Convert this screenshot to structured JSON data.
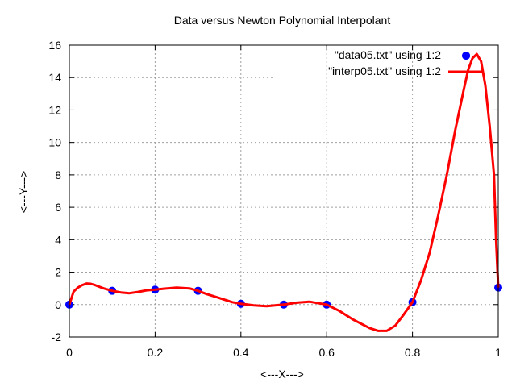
{
  "chart_data": {
    "type": "scatter",
    "title": "Data versus Newton Polynomial Interpolant",
    "xlabel": "<---X--->",
    "ylabel": "<---Y--->",
    "xlim": [
      0,
      1
    ],
    "ylim": [
      -2,
      16
    ],
    "xticks": [
      0,
      0.2,
      0.4,
      0.6,
      0.8,
      1
    ],
    "xtick_labels": [
      "0",
      "0.2",
      "0.4",
      "0.6",
      "0.8",
      "1"
    ],
    "yticks": [
      -2,
      0,
      2,
      4,
      6,
      8,
      10,
      12,
      14,
      16
    ],
    "ytick_labels": [
      "-2",
      "0",
      "2",
      "4",
      "6",
      "8",
      "10",
      "12",
      "14",
      "16"
    ],
    "grid": true,
    "legend_position": "top-right",
    "series": [
      {
        "name": "\"data05.txt\" using 1:2",
        "kind": "points",
        "color": "#0000ff",
        "x": [
          0,
          0.1,
          0.2,
          0.3,
          0.4,
          0.5,
          0.6,
          0.8,
          0.925,
          1
        ],
        "y": [
          0,
          0.85,
          0.92,
          0.85,
          0.05,
          0.0,
          0.0,
          0.15,
          15.35,
          1.05
        ]
      },
      {
        "name": "\"interp05.txt\" using 1:2",
        "kind": "line",
        "color": "#ff0000",
        "x": [
          0,
          0.01,
          0.02,
          0.03,
          0.04,
          0.05,
          0.06,
          0.08,
          0.1,
          0.12,
          0.14,
          0.16,
          0.18,
          0.2,
          0.22,
          0.25,
          0.28,
          0.3,
          0.32,
          0.35,
          0.38,
          0.4,
          0.43,
          0.46,
          0.5,
          0.53,
          0.56,
          0.6,
          0.63,
          0.66,
          0.7,
          0.72,
          0.74,
          0.76,
          0.78,
          0.8,
          0.82,
          0.84,
          0.86,
          0.88,
          0.9,
          0.92,
          0.93,
          0.94,
          0.95,
          0.96,
          0.97,
          0.98,
          0.99,
          0.995,
          1.0
        ],
        "y": [
          0,
          0.8,
          1.05,
          1.2,
          1.3,
          1.28,
          1.2,
          1.0,
          0.85,
          0.75,
          0.7,
          0.78,
          0.88,
          0.92,
          0.98,
          1.05,
          1.0,
          0.85,
          0.65,
          0.4,
          0.15,
          0.05,
          -0.05,
          -0.1,
          0.0,
          0.12,
          0.18,
          0.0,
          -0.4,
          -0.9,
          -1.45,
          -1.62,
          -1.62,
          -1.3,
          -0.6,
          0.15,
          1.5,
          3.2,
          5.5,
          8.0,
          10.8,
          13.3,
          14.5,
          15.2,
          15.45,
          15.0,
          13.5,
          11.0,
          8.0,
          4.0,
          1.05
        ]
      }
    ]
  }
}
